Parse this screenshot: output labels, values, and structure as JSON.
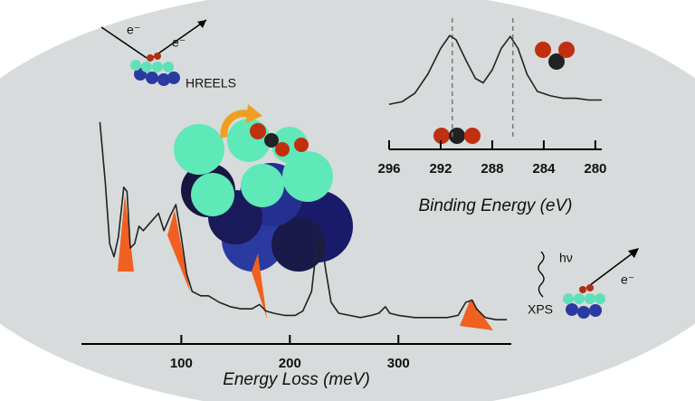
{
  "chart_data": [
    {
      "type": "line",
      "title": "Energy Loss (meV)",
      "annotation": "HREELS",
      "electron_label": "e⁻",
      "x": [
        25,
        30,
        34,
        38,
        42,
        47,
        50,
        53,
        57,
        61,
        65,
        72,
        79,
        84,
        90,
        95,
        100,
        105,
        110,
        118,
        125,
        135,
        145,
        155,
        165,
        172,
        178,
        185,
        195,
        205,
        212,
        220,
        225,
        229,
        233,
        238,
        245,
        255,
        265,
        275,
        282,
        288,
        292,
        300,
        315,
        330,
        345,
        355,
        362,
        368,
        372,
        380,
        390,
        400
      ],
      "series": [
        {
          "color": "#222222",
          "values": [
            98,
            70,
            42,
            36,
            45,
            68,
            66,
            40,
            42,
            50,
            48,
            52,
            56,
            48,
            55,
            60,
            45,
            28,
            20,
            18,
            18,
            15,
            13,
            12,
            12,
            14,
            11,
            10,
            9,
            9,
            11,
            20,
            42,
            44,
            30,
            15,
            10,
            9,
            8,
            9,
            10,
            13,
            10,
            9,
            8,
            8,
            8,
            9,
            15,
            16,
            12,
            8,
            7,
            7
          ]
        }
      ],
      "xlim": [
        8,
        404
      ],
      "ylim": [
        0,
        100
      ],
      "xticks": [
        100,
        200,
        300
      ]
    },
    {
      "type": "line",
      "title": "Binding Energy (eV)",
      "annotation": "XPS",
      "electron_label": "e⁻",
      "photon_label": "hν",
      "x": [
        296,
        295,
        294,
        293,
        292,
        291.3,
        290.8,
        290,
        289.3,
        288.7,
        288,
        287.3,
        286.6,
        286,
        285.3,
        284.5,
        283.5,
        282.5,
        281.5,
        280.5,
        279.5
      ],
      "series": [
        {
          "color": "#222222",
          "values": [
            5,
            8,
            18,
            40,
            70,
            85,
            80,
            55,
            35,
            30,
            45,
            70,
            84,
            70,
            40,
            20,
            15,
            12,
            12,
            10,
            10
          ]
        }
      ],
      "peaks": [
        291.1,
        286.4
      ],
      "xlim": [
        296,
        279.5
      ],
      "ylim": [
        0,
        100
      ],
      "xticks": [
        296,
        292,
        288,
        284,
        280
      ]
    }
  ]
}
